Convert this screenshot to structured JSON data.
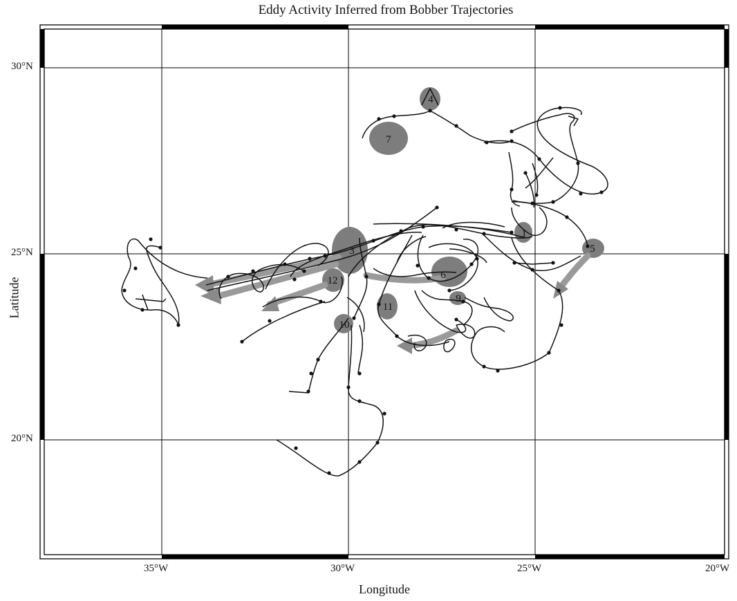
{
  "title": "Eddy Activity Inferred from Bobber Trajectories",
  "xlabel": "Longitude",
  "ylabel": "Latitude",
  "x_ticks": [
    "35°W",
    "30°W",
    "25°W",
    "20°W"
  ],
  "y_ticks": [
    "30°N",
    "25°N",
    "20°N"
  ],
  "eddies": [
    "1",
    "3",
    "4",
    "5",
    "6",
    "7",
    "9",
    "10",
    "11",
    "12"
  ],
  "colors": {
    "eddy_fill": "#7d7d7d",
    "arrow_fill": "#9a9a9a",
    "track": "#111111",
    "grid": "#000000"
  }
}
